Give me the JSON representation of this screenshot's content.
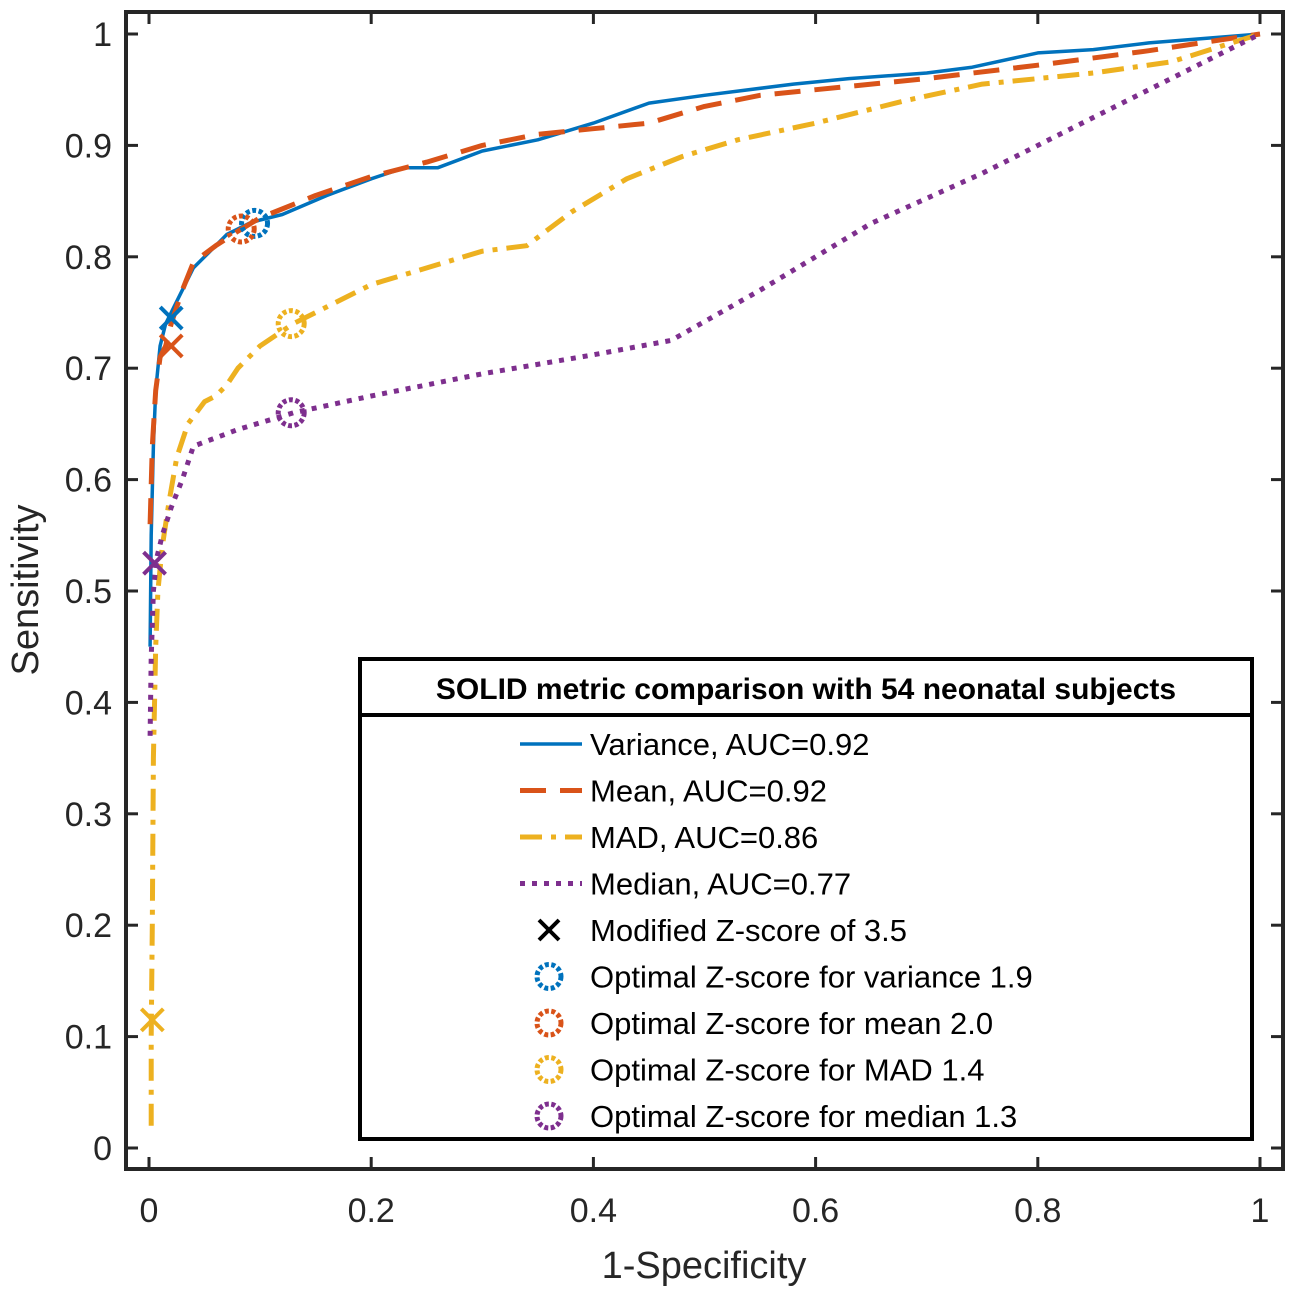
{
  "chart_data": {
    "type": "line",
    "title": "",
    "xlabel": "1-Specificity",
    "ylabel": "Sensitivity",
    "xlim": [
      0,
      1
    ],
    "ylim": [
      0,
      1
    ],
    "x_ticks": [
      "0",
      "0.2",
      "0.4",
      "0.6",
      "0.8",
      "1"
    ],
    "y_ticks": [
      "0",
      "0.1",
      "0.2",
      "0.3",
      "0.4",
      "0.5",
      "0.6",
      "0.7",
      "0.8",
      "0.9",
      "1"
    ],
    "grid": false,
    "legend_position": "bottom-right",
    "legend_title": "SOLID metric comparison with 54 neonatal subjects",
    "series": [
      {
        "name": "Variance, AUC=0.92",
        "color": "#0072BD",
        "style": "solid",
        "x": [
          0.001,
          0.002,
          0.004,
          0.006,
          0.01,
          0.015,
          0.02,
          0.03,
          0.04,
          0.05,
          0.06,
          0.07,
          0.08,
          0.09,
          0.1,
          0.12,
          0.16,
          0.2,
          0.23,
          0.26,
          0.3,
          0.35,
          0.4,
          0.45,
          0.5,
          0.58,
          0.63,
          0.7,
          0.74,
          0.8,
          0.85,
          0.9,
          1.0
        ],
        "y": [
          0.45,
          0.55,
          0.63,
          0.68,
          0.72,
          0.74,
          0.75,
          0.77,
          0.79,
          0.8,
          0.81,
          0.82,
          0.825,
          0.83,
          0.833,
          0.838,
          0.855,
          0.87,
          0.88,
          0.88,
          0.895,
          0.905,
          0.92,
          0.938,
          0.945,
          0.955,
          0.96,
          0.965,
          0.97,
          0.983,
          0.986,
          0.992,
          1.0
        ]
      },
      {
        "name": "Mean, AUC=0.92",
        "color": "#D95319",
        "style": "dashed",
        "x": [
          0.001,
          0.003,
          0.006,
          0.01,
          0.015,
          0.02,
          0.03,
          0.04,
          0.06,
          0.08,
          0.1,
          0.15,
          0.2,
          0.25,
          0.3,
          0.35,
          0.4,
          0.45,
          0.5,
          0.55,
          0.6,
          0.7,
          0.8,
          0.9,
          1.0
        ],
        "y": [
          0.56,
          0.63,
          0.68,
          0.71,
          0.72,
          0.74,
          0.77,
          0.795,
          0.81,
          0.823,
          0.835,
          0.855,
          0.872,
          0.885,
          0.9,
          0.91,
          0.915,
          0.92,
          0.935,
          0.945,
          0.95,
          0.96,
          0.972,
          0.985,
          1.0
        ]
      },
      {
        "name": "MAD, AUC=0.86",
        "color": "#EDB120",
        "style": "dashdot",
        "x": [
          0.002,
          0.002,
          0.003,
          0.004,
          0.006,
          0.008,
          0.012,
          0.018,
          0.025,
          0.035,
          0.05,
          0.06,
          0.07,
          0.08,
          0.1,
          0.13,
          0.16,
          0.2,
          0.25,
          0.3,
          0.34,
          0.38,
          0.43,
          0.48,
          0.53,
          0.6,
          0.68,
          0.75,
          0.8,
          0.85,
          0.92,
          1.0
        ],
        "y": [
          0.02,
          0.1,
          0.2,
          0.35,
          0.45,
          0.5,
          0.54,
          0.58,
          0.62,
          0.65,
          0.67,
          0.675,
          0.685,
          0.7,
          0.72,
          0.74,
          0.755,
          0.775,
          0.79,
          0.805,
          0.81,
          0.84,
          0.87,
          0.89,
          0.905,
          0.92,
          0.94,
          0.955,
          0.96,
          0.965,
          0.975,
          1.0
        ]
      },
      {
        "name": "Median, AUC=0.77",
        "color": "#7E2F8E",
        "style": "dotted",
        "x": [
          0.001,
          0.002,
          0.004,
          0.007,
          0.012,
          0.02,
          0.03,
          0.04,
          0.08,
          0.13,
          0.2,
          0.3,
          0.4,
          0.47,
          0.55,
          0.65,
          0.75,
          0.85,
          1.0
        ],
        "y": [
          0.37,
          0.44,
          0.5,
          0.53,
          0.55,
          0.575,
          0.6,
          0.63,
          0.645,
          0.66,
          0.675,
          0.695,
          0.712,
          0.725,
          0.77,
          0.83,
          0.875,
          0.925,
          1.0
        ]
      }
    ],
    "markers": {
      "cross_label": "Modified Z-score of 3.5",
      "crosses": [
        {
          "series": "Variance",
          "x": 0.02,
          "y": 0.745,
          "color": "#0072BD"
        },
        {
          "series": "Mean",
          "x": 0.02,
          "y": 0.72,
          "color": "#D95319"
        },
        {
          "series": "MAD",
          "x": 0.003,
          "y": 0.115,
          "color": "#EDB120"
        },
        {
          "series": "Median",
          "x": 0.005,
          "y": 0.525,
          "color": "#7E2F8E"
        }
      ],
      "circles": [
        {
          "label": "Optimal Z-score for variance 1.9",
          "x": 0.095,
          "y": 0.83,
          "color": "#0072BD"
        },
        {
          "label": "Optimal Z-score for mean 2.0",
          "x": 0.083,
          "y": 0.825,
          "color": "#D95319"
        },
        {
          "label": "Optimal Z-score for MAD 1.4",
          "x": 0.128,
          "y": 0.74,
          "color": "#EDB120"
        },
        {
          "label": "Optimal Z-score for median 1.3",
          "x": 0.128,
          "y": 0.66,
          "color": "#7E2F8E"
        }
      ]
    }
  }
}
